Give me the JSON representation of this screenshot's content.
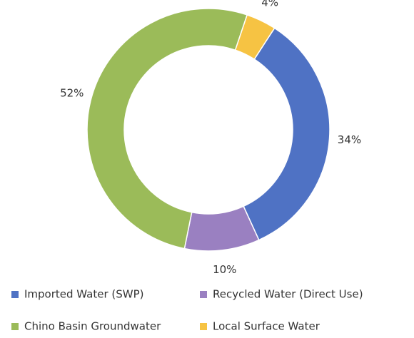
{
  "chart_data": {
    "type": "donut",
    "categories": [
      "Imported Water (SWP)",
      "Recycled Water (Direct Use)",
      "Chino Basin Groundwater",
      "Local Surface Water"
    ],
    "values": [
      34,
      10,
      52,
      4
    ],
    "value_labels": [
      "34%",
      "10%",
      "52%",
      "4%"
    ],
    "colors": [
      "#4f72c4",
      "#9a80c1",
      "#9bbb59",
      "#f6c343"
    ],
    "legend": "bottom"
  }
}
